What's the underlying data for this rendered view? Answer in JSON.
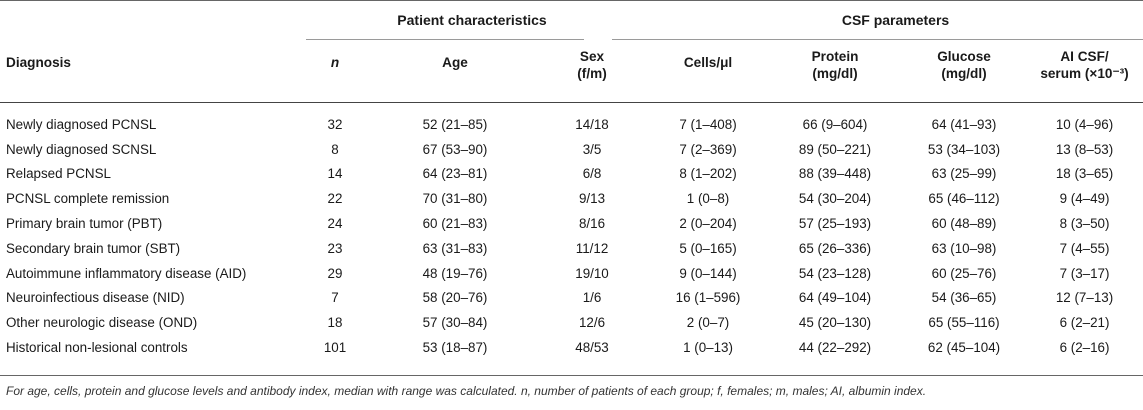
{
  "group_headers": {
    "patient": "Patient characteristics",
    "csf": "CSF parameters"
  },
  "columns": {
    "diagnosis": "Diagnosis",
    "n": "n",
    "age": "Age",
    "sex_line1": "Sex",
    "sex_line2": "(f/m)",
    "cells": "Cells/μl",
    "protein_line1": "Protein",
    "protein_line2": "(mg/dl)",
    "glucose_line1": "Glucose",
    "glucose_line2": "(mg/dl)",
    "ai_line1": "AI CSF/",
    "ai_line2": "serum (×10⁻³)"
  },
  "rows": [
    {
      "diagnosis": "Newly diagnosed PCNSL",
      "n": "32",
      "age": "52 (21–85)",
      "sex": "14/18",
      "cells": "7 (1–408)",
      "protein": "66 (9–604)",
      "glucose": "64 (41–93)",
      "ai": "10 (4–96)"
    },
    {
      "diagnosis": "Newly diagnosed SCNSL",
      "n": "8",
      "age": "67 (53–90)",
      "sex": "3/5",
      "cells": "7 (2–369)",
      "protein": "89 (50–221)",
      "glucose": "53 (34–103)",
      "ai": "13 (8–53)"
    },
    {
      "diagnosis": "Relapsed PCNSL",
      "n": "14",
      "age": "64 (23–81)",
      "sex": "6/8",
      "cells": "8 (1–202)",
      "protein": "88 (39–448)",
      "glucose": "63 (25–99)",
      "ai": "18 (3–65)"
    },
    {
      "diagnosis": "PCNSL complete remission",
      "n": "22",
      "age": "70 (31–80)",
      "sex": "9/13",
      "cells": "1 (0–8)",
      "protein": "54 (30–204)",
      "glucose": "65 (46–112)",
      "ai": "9 (4–49)"
    },
    {
      "diagnosis": "Primary brain tumor (PBT)",
      "n": "24",
      "age": "60 (21–83)",
      "sex": "8/16",
      "cells": "2 (0–204)",
      "protein": "57 (25–193)",
      "glucose": "60 (48–89)",
      "ai": "8 (3–50)"
    },
    {
      "diagnosis": "Secondary brain tumor (SBT)",
      "n": "23",
      "age": "63 (31–83)",
      "sex": "11/12",
      "cells": "5 (0–165)",
      "protein": "65 (26–336)",
      "glucose": "63 (10–98)",
      "ai": "7 (4–55)"
    },
    {
      "diagnosis": "Autoimmune inflammatory disease (AID)",
      "n": "29",
      "age": "48 (19–76)",
      "sex": "19/10",
      "cells": "9 (0–144)",
      "protein": "54 (23–128)",
      "glucose": "60 (25–76)",
      "ai": "7 (3–17)"
    },
    {
      "diagnosis": "Neuroinfectious disease (NID)",
      "n": "7",
      "age": "58 (20–76)",
      "sex": "1/6",
      "cells": "16 (1–596)",
      "protein": "64 (49–104)",
      "glucose": "54 (36–65)",
      "ai": "12 (7–13)"
    },
    {
      "diagnosis": "Other neurologic disease (OND)",
      "n": "18",
      "age": "57 (30–84)",
      "sex": "12/6",
      "cells": "2 (0–7)",
      "protein": "45 (20–130)",
      "glucose": "65 (55–116)",
      "ai": "6 (2–21)"
    },
    {
      "diagnosis": "Historical non-lesional controls",
      "n": "101",
      "age": "53 (18–87)",
      "sex": "48/53",
      "cells": "1 (0–13)",
      "protein": "44 (22–292)",
      "glucose": "62 (45–104)",
      "ai": "6 (2–16)"
    }
  ],
  "footnote": "For age, cells, protein and glucose levels and antibody index, median with range was calculated. n, number of patients of each group; f, females; m, males; AI, albumin index."
}
